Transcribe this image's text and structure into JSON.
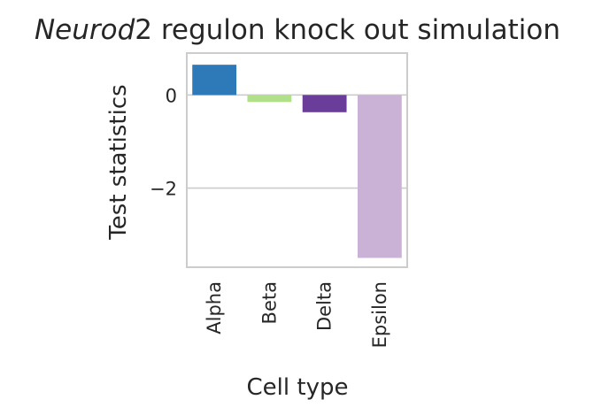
{
  "chart_data": {
    "type": "bar",
    "title_italic": "Neurod",
    "title_rest": "2 regulon knock out simulation",
    "xlabel": "Cell type",
    "ylabel": "Test statistics",
    "categories": [
      "Alpha",
      "Beta",
      "Delta",
      "Epsilon"
    ],
    "values": [
      0.65,
      -0.15,
      -0.37,
      -3.5
    ],
    "colors": [
      "#2e7ab8",
      "#b2df8a",
      "#6a3d9a",
      "#cab2d6"
    ],
    "ylim": [
      -3.7,
      0.9
    ],
    "yticks": [
      0,
      -2
    ],
    "ytick_labels": [
      "0",
      "−2"
    ],
    "grid": true
  }
}
